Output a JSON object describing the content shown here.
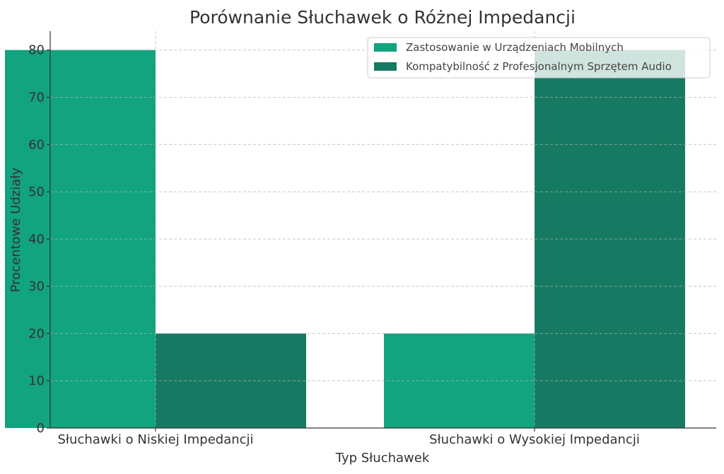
{
  "chart_data": {
    "type": "bar",
    "title": "Porównanie Słuchawek o Różnej Impedancji",
    "xlabel": "Typ Słuchawek",
    "ylabel": "Procentowe Udziały",
    "categories": [
      "Słuchawki o Niskiej Impedancji",
      "Słuchawki o Wysokiej Impedancji"
    ],
    "series": [
      {
        "name": "Zastosowanie w Urządzeniach Mobilnych",
        "values": [
          80,
          20
        ],
        "color": "#12a37f"
      },
      {
        "name": "Kompatybilność z Profesjonalnym Sprzętem Audio",
        "values": [
          20,
          80
        ],
        "color": "#167a62"
      }
    ],
    "ylim": [
      0,
      84
    ],
    "yticks": [
      0,
      10,
      20,
      30,
      40,
      50,
      60,
      70,
      80
    ],
    "grid": true,
    "legend_position": "top-right",
    "colors": {
      "text": "#333333",
      "grid": "#cccccc",
      "axis": "#333333"
    }
  }
}
